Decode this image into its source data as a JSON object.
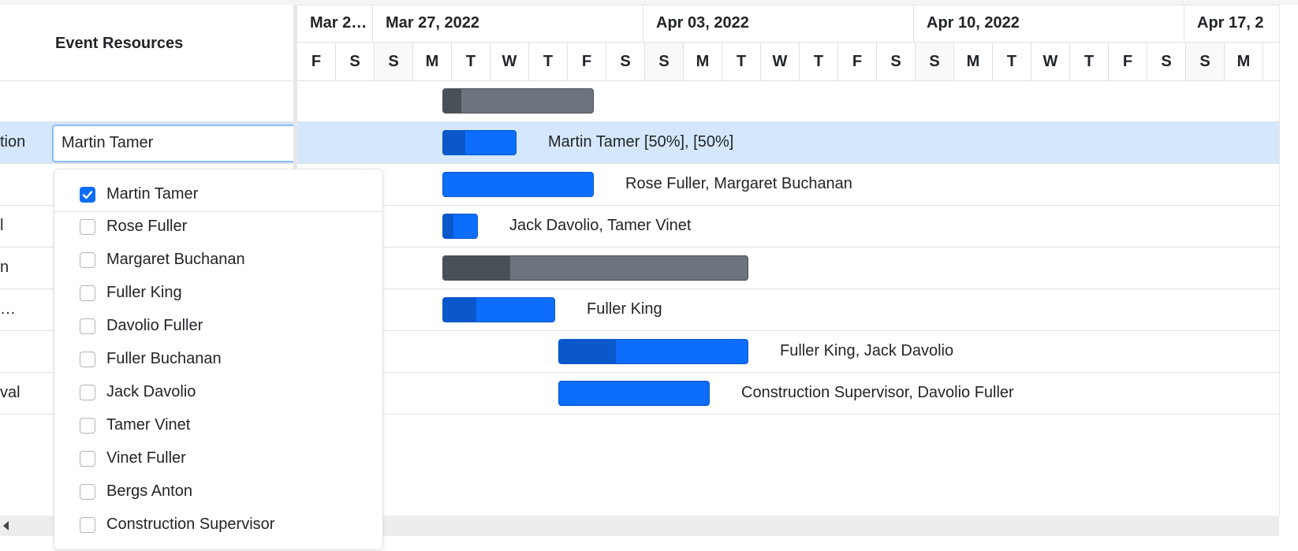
{
  "grid": {
    "header_title": "Event Resources",
    "rows": [
      {
        "name": ""
      },
      {
        "name": "tion"
      },
      {
        "name": ""
      },
      {
        "name": "l"
      },
      {
        "name": "n"
      },
      {
        "name": "…"
      },
      {
        "name": ""
      },
      {
        "name": "val"
      }
    ],
    "editor_value": "Martin Tamer"
  },
  "dropdown": {
    "items": [
      {
        "label": "Martin Tamer",
        "checked": true
      },
      {
        "label": "Rose Fuller",
        "checked": false
      },
      {
        "label": "Margaret Buchanan",
        "checked": false
      },
      {
        "label": "Fuller King",
        "checked": false
      },
      {
        "label": "Davolio Fuller",
        "checked": false
      },
      {
        "label": "Fuller Buchanan",
        "checked": false
      },
      {
        "label": "Jack Davolio",
        "checked": false
      },
      {
        "label": "Tamer Vinet",
        "checked": false
      },
      {
        "label": "Vinet Fuller",
        "checked": false
      },
      {
        "label": "Bergs Anton",
        "checked": false
      },
      {
        "label": "Construction Supervisor",
        "checked": false
      }
    ]
  },
  "timeline": {
    "weeks": [
      "Mar 2…",
      "Mar 27, 2022",
      "Apr 03, 2022",
      "Apr 10, 2022",
      "Apr 17, 2"
    ],
    "days": [
      "F",
      "S",
      "S",
      "M",
      "T",
      "W",
      "T",
      "F",
      "S",
      "S",
      "M",
      "T",
      "W",
      "T",
      "F",
      "S",
      "S",
      "M",
      "T",
      "W",
      "T",
      "F",
      "S",
      "S",
      "M"
    ]
  },
  "tasks": [
    {
      "type": "parent",
      "start_day": 4,
      "duration_days": 4,
      "progress": 0.12,
      "label": ""
    },
    {
      "type": "task",
      "start_day": 4,
      "duration_days": 2,
      "progress": 0.3,
      "label": "Martin Tamer [50%], [50%]"
    },
    {
      "type": "task",
      "start_day": 4,
      "duration_days": 4,
      "progress": 0,
      "label": "Rose Fuller, Margaret Buchanan"
    },
    {
      "type": "task",
      "start_day": 4,
      "duration_days": 1,
      "progress": 0.3,
      "label": "Jack Davolio, Tamer Vinet"
    },
    {
      "type": "parent",
      "start_day": 4,
      "duration_days": 8,
      "progress": 0.22,
      "label": ""
    },
    {
      "type": "task",
      "start_day": 4,
      "duration_days": 3,
      "progress": 0.3,
      "label": "Fuller King"
    },
    {
      "type": "task",
      "start_day": 7,
      "duration_days": 5,
      "progress": 0.3,
      "label": "Fuller King, Jack Davolio"
    },
    {
      "type": "task",
      "start_day": 7,
      "duration_days": 4,
      "progress": 0,
      "label": "Construction Supervisor, Davolio Fuller"
    }
  ],
  "selected_row": 1
}
